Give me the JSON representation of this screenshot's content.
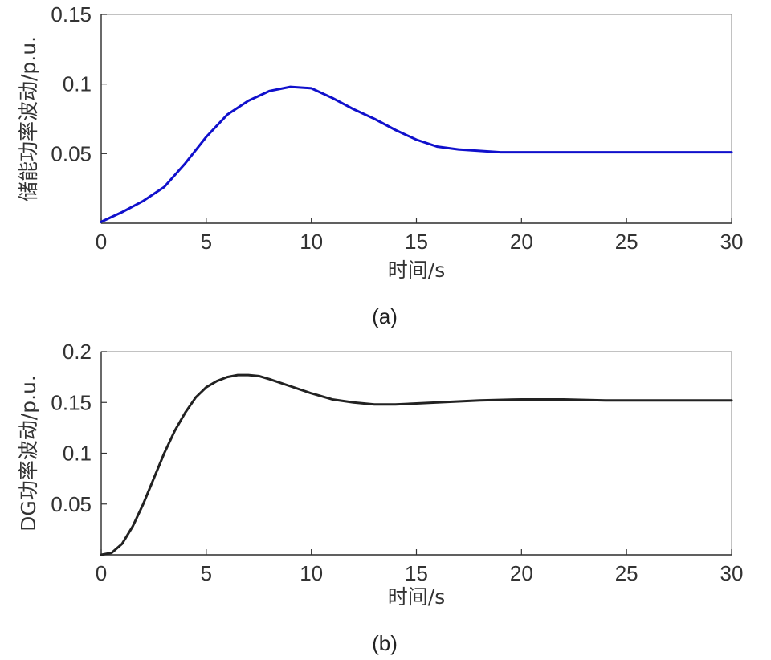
{
  "chart_data": [
    {
      "type": "line",
      "caption": "(a)",
      "xlabel": "时间/s",
      "ylabel": "储能功率波动/p.u.",
      "xlim": [
        0,
        30
      ],
      "ylim": [
        0,
        0.15
      ],
      "xticks": [
        "0",
        "5",
        "10",
        "15",
        "20",
        "25",
        "30"
      ],
      "yticks": [
        "0.05",
        "0.1",
        "0.15"
      ],
      "grid": false,
      "series": [
        {
          "color": "#1010cc",
          "x": [
            0,
            1,
            2,
            3,
            4,
            5,
            6,
            7,
            8,
            9,
            10,
            11,
            12,
            13,
            14,
            15,
            16,
            17,
            18,
            19,
            20,
            22,
            24,
            26,
            28,
            30
          ],
          "y": [
            0.001,
            0.008,
            0.016,
            0.026,
            0.043,
            0.062,
            0.078,
            0.088,
            0.095,
            0.098,
            0.097,
            0.09,
            0.082,
            0.075,
            0.067,
            0.06,
            0.055,
            0.053,
            0.052,
            0.051,
            0.051,
            0.051,
            0.051,
            0.051,
            0.051,
            0.051
          ]
        }
      ]
    },
    {
      "type": "line",
      "caption": "(b)",
      "xlabel": "时间/s",
      "ylabel": "DG功率波动/p.u.",
      "xlim": [
        0,
        30
      ],
      "ylim": [
        0,
        0.2
      ],
      "xticks": [
        "0",
        "5",
        "10",
        "15",
        "20",
        "25",
        "30"
      ],
      "yticks": [
        "0.05",
        "0.1",
        "0.15",
        "0.2"
      ],
      "grid": false,
      "series": [
        {
          "color": "#222222",
          "x": [
            0,
            0.5,
            1,
            1.5,
            2,
            2.5,
            3,
            3.5,
            4,
            4.5,
            5,
            5.5,
            6,
            6.5,
            7,
            7.5,
            8,
            9,
            10,
            11,
            12,
            13,
            14,
            15,
            16,
            18,
            20,
            22,
            24,
            26,
            28,
            30
          ],
          "y": [
            0,
            0.002,
            0.011,
            0.028,
            0.05,
            0.075,
            0.1,
            0.122,
            0.14,
            0.155,
            0.165,
            0.171,
            0.175,
            0.177,
            0.177,
            0.176,
            0.173,
            0.166,
            0.159,
            0.153,
            0.15,
            0.148,
            0.148,
            0.149,
            0.15,
            0.152,
            0.153,
            0.153,
            0.152,
            0.152,
            0.152,
            0.152
          ]
        }
      ]
    }
  ]
}
